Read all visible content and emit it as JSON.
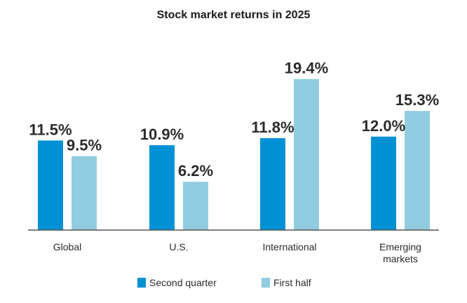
{
  "chart_data": {
    "type": "bar",
    "title": "Stock market returns in 2025",
    "categories": [
      [
        "Global"
      ],
      [
        "U.S."
      ],
      [
        "International"
      ],
      [
        "Emerging",
        "markets"
      ]
    ],
    "series": [
      {
        "name": "Second quarter",
        "color": "#0091d5",
        "values": [
          11.5,
          10.9,
          11.8,
          12.0
        ],
        "labels": [
          "11.5%",
          "10.9%",
          "11.8%",
          "12.0%"
        ]
      },
      {
        "name": "First half",
        "color": "#92cce0",
        "values": [
          9.5,
          6.2,
          19.4,
          15.3
        ],
        "labels": [
          "9.5%",
          "6.2%",
          "19.4%",
          "15.3%"
        ]
      }
    ],
    "ylim": [
      0,
      20
    ],
    "grid": false,
    "legend_position": "bottom",
    "axis_color": "#555555"
  }
}
